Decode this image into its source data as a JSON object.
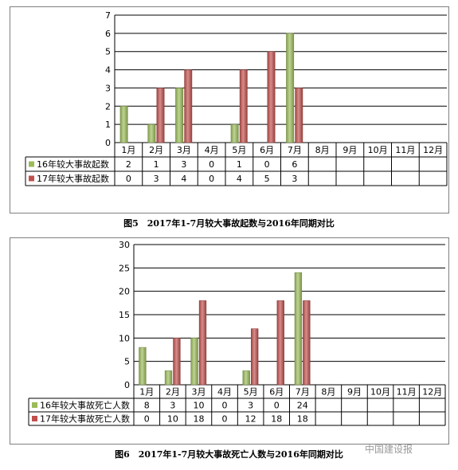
{
  "chart_data": [
    {
      "type": "bar",
      "categories": [
        "1月",
        "2月",
        "3月",
        "4月",
        "5月",
        "6月",
        "7月",
        "8月",
        "9月",
        "10月",
        "11月",
        "12月"
      ],
      "series": [
        {
          "name": "16年较大事故起数",
          "values": [
            2,
            1,
            3,
            0,
            1,
            0,
            6,
            null,
            null,
            null,
            null,
            null
          ],
          "color": "#9bbb59"
        },
        {
          "name": "17年较大事故起数",
          "values": [
            0,
            3,
            4,
            0,
            4,
            5,
            3,
            null,
            null,
            null,
            null,
            null
          ],
          "color": "#c0504d"
        }
      ],
      "ylim": [
        0,
        7
      ],
      "yticks": [
        0,
        1,
        2,
        3,
        4,
        5,
        6,
        7
      ],
      "grid": true,
      "caption": "图5　2017年1-7月较大事故起数与2016年同期对比"
    },
    {
      "type": "bar",
      "categories": [
        "1月",
        "2月",
        "3月",
        "4月",
        "5月",
        "6月",
        "7月",
        "8月",
        "9月",
        "10月",
        "11月",
        "12月"
      ],
      "series": [
        {
          "name": "16年较大事故死亡人数",
          "values": [
            8,
            3,
            10,
            0,
            3,
            0,
            24,
            null,
            null,
            null,
            null,
            null
          ],
          "color": "#9bbb59"
        },
        {
          "name": "17年较大事故死亡人数",
          "values": [
            0,
            10,
            18,
            0,
            12,
            18,
            18,
            null,
            null,
            null,
            null,
            null
          ],
          "color": "#c0504d"
        }
      ],
      "ylim": [
        0,
        30
      ],
      "yticks": [
        0,
        5,
        10,
        15,
        20,
        25,
        30
      ],
      "grid": true,
      "caption": "图6　2017年1-7月较大事故死亡人数与2016年同期对比"
    }
  ],
  "watermark": "中国建设报"
}
